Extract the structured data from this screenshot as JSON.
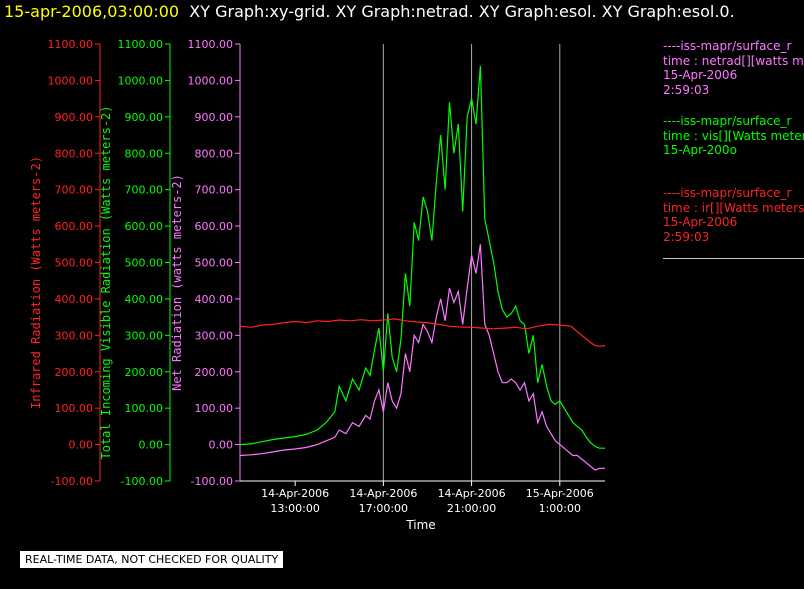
{
  "header": {
    "timestamp": "15-apr-2006,03:00:00",
    "graphs": "XY Graph:xy-grid.  XY Graph:netrad.  XY Graph:esol.  XY Graph:esol.0."
  },
  "legend": {
    "netrad": {
      "lines": [
        "----iss-mapr/surface_r",
        "time : netrad[][watts m",
        "15-Apr-2006",
        "2:59:03"
      ],
      "color": "#ff77ff"
    },
    "vis": {
      "lines": [
        "----iss-mapr/surface_r",
        "time : vis[][Watts meter",
        "15-Apr-200o"
      ],
      "color": "#00ff00"
    },
    "ir": {
      "lines": [
        "----iss-mapr/surface_r",
        "time : ir[][Watts meters",
        "15-Apr-2006",
        "2:59:03"
      ],
      "color": "#ff2222"
    }
  },
  "quality_note": "REAL-TIME DATA, NOT CHECKED FOR QUALITY",
  "chart_data": {
    "type": "line",
    "xlabel": "Time",
    "x_ticks": [
      {
        "hours": 13,
        "label": [
          "14-Apr-2006",
          "13:00:00"
        ]
      },
      {
        "hours": 17,
        "label": [
          "14-Apr-2006",
          "17:00:00"
        ]
      },
      {
        "hours": 21,
        "label": [
          "14-Apr-2006",
          "21:00:00"
        ]
      },
      {
        "hours": 25,
        "label": [
          "15-Apr-2006",
          "1:00:00"
        ]
      }
    ],
    "x_range_hours_since_14apr_0000": [
      10.5,
      27.05
    ],
    "vertical_grid_hours": [
      17,
      21,
      25
    ],
    "axes": [
      {
        "id": "ir",
        "label": "Infrared Radiation (Watts meters-2)",
        "color": "#ff2222",
        "range": [
          -100,
          1100
        ],
        "ticks": [
          "-100.00",
          "0.00",
          "100.00",
          "200.00",
          "300.00",
          "400.00",
          "500.00",
          "600.00",
          "700.00",
          "800.00",
          "900.00",
          "1000.00",
          "1100.00"
        ]
      },
      {
        "id": "vis",
        "label": "Total Incoming Visible Radiation (Watts meters-2)",
        "color": "#00ff00",
        "range": [
          -100,
          1100
        ],
        "ticks": [
          "-100.00",
          "0.00",
          "100.00",
          "200.00",
          "300.00",
          "400.00",
          "500.00",
          "600.00",
          "700.00",
          "800.00",
          "900.00",
          "1000.00",
          "1100.00"
        ]
      },
      {
        "id": "netrad",
        "label": "Net Radiation (watts meters-2)",
        "color": "#ff77ff",
        "range": [
          -100,
          1100
        ],
        "ticks": [
          "-100.00",
          "0.00",
          "100.00",
          "200.00",
          "300.00",
          "400.00",
          "500.00",
          "600.00",
          "700.00",
          "800.00",
          "900.00",
          "1000.00",
          "1100.00"
        ]
      }
    ],
    "series": [
      {
        "id": "vis",
        "color": "#00ff00",
        "x": [
          10.5,
          11.0,
          11.5,
          12.0,
          12.5,
          13.0,
          13.5,
          14.0,
          14.4,
          14.8,
          15.0,
          15.3,
          15.6,
          15.9,
          16.2,
          16.4,
          16.6,
          16.8,
          17.0,
          17.2,
          17.4,
          17.6,
          17.8,
          18.0,
          18.2,
          18.4,
          18.6,
          18.8,
          19.0,
          19.2,
          19.4,
          19.6,
          19.8,
          20.0,
          20.2,
          20.4,
          20.6,
          20.8,
          21.0,
          21.2,
          21.4,
          21.6,
          21.8,
          22.0,
          22.2,
          22.4,
          22.6,
          22.8,
          23.0,
          23.2,
          23.4,
          23.6,
          23.8,
          24.0,
          24.2,
          24.4,
          24.6,
          24.8,
          25.0,
          25.2,
          25.4,
          25.6,
          25.8,
          26.0,
          26.2,
          26.4,
          26.6,
          26.8,
          27.05
        ],
        "y": [
          0,
          2,
          8,
          14,
          18,
          22,
          28,
          40,
          60,
          90,
          160,
          120,
          180,
          150,
          210,
          190,
          260,
          320,
          200,
          360,
          240,
          200,
          290,
          470,
          380,
          610,
          560,
          680,
          640,
          560,
          720,
          850,
          700,
          940,
          800,
          880,
          640,
          900,
          950,
          880,
          1040,
          620,
          560,
          500,
          420,
          370,
          350,
          360,
          380,
          340,
          330,
          250,
          300,
          170,
          220,
          160,
          120,
          110,
          120,
          100,
          80,
          60,
          50,
          40,
          20,
          5,
          -5,
          -10,
          -10
        ]
      },
      {
        "id": "netrad",
        "color": "#ff77ff",
        "x": [
          10.5,
          11.0,
          11.5,
          12.0,
          12.5,
          13.0,
          13.5,
          14.0,
          14.4,
          14.8,
          15.0,
          15.3,
          15.6,
          15.9,
          16.2,
          16.4,
          16.6,
          16.8,
          17.0,
          17.2,
          17.4,
          17.6,
          17.8,
          18.0,
          18.2,
          18.4,
          18.6,
          18.8,
          19.0,
          19.2,
          19.4,
          19.6,
          19.8,
          20.0,
          20.2,
          20.4,
          20.6,
          20.8,
          21.0,
          21.2,
          21.4,
          21.6,
          21.8,
          22.0,
          22.2,
          22.4,
          22.6,
          22.8,
          23.0,
          23.2,
          23.4,
          23.6,
          23.8,
          24.0,
          24.2,
          24.4,
          24.6,
          24.8,
          25.0,
          25.2,
          25.4,
          25.6,
          25.8,
          26.0,
          26.2,
          26.4,
          26.6,
          26.8,
          27.05
        ],
        "y": [
          -30,
          -28,
          -25,
          -20,
          -15,
          -12,
          -8,
          0,
          10,
          20,
          40,
          30,
          60,
          50,
          80,
          70,
          120,
          150,
          90,
          170,
          120,
          100,
          140,
          250,
          200,
          300,
          280,
          330,
          310,
          280,
          350,
          400,
          340,
          430,
          390,
          420,
          330,
          430,
          520,
          470,
          550,
          330,
          300,
          250,
          200,
          170,
          170,
          180,
          170,
          150,
          170,
          120,
          140,
          60,
          90,
          50,
          30,
          10,
          0,
          -10,
          -20,
          -30,
          -30,
          -40,
          -50,
          -60,
          -70,
          -65,
          -65
        ]
      },
      {
        "id": "ir",
        "color": "#ff2222",
        "x": [
          10.5,
          11.0,
          11.5,
          12.0,
          12.5,
          13.0,
          13.5,
          14.0,
          14.5,
          15.0,
          15.5,
          16.0,
          16.5,
          17.0,
          17.5,
          18.0,
          18.5,
          19.0,
          19.5,
          20.0,
          20.5,
          21.0,
          21.5,
          22.0,
          22.5,
          23.0,
          23.5,
          24.0,
          24.5,
          25.0,
          25.5,
          26.0,
          26.2,
          26.4,
          26.6,
          26.8,
          27.05
        ],
        "y": [
          325,
          322,
          328,
          330,
          335,
          338,
          335,
          340,
          338,
          342,
          340,
          343,
          340,
          342,
          345,
          340,
          337,
          335,
          330,
          325,
          323,
          322,
          320,
          318,
          320,
          322,
          318,
          325,
          330,
          328,
          325,
          300,
          290,
          280,
          272,
          270,
          272
        ]
      }
    ]
  }
}
